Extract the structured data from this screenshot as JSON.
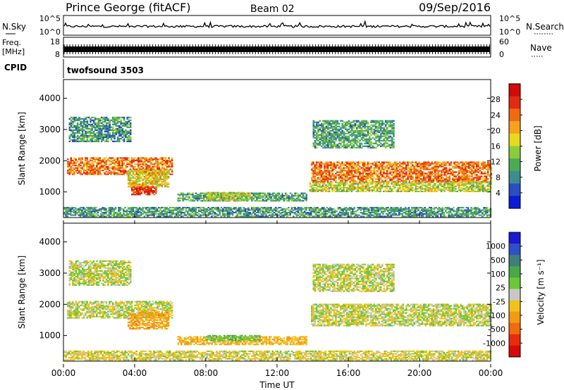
{
  "header": {
    "site": "Prince George (fitACF)",
    "beam": "Beam 02",
    "date": "09/Sep/2016"
  },
  "top_panels": {
    "nsky_label": "N.Sky",
    "nsky_ticks": [
      "10^5",
      "10^0"
    ],
    "nsearch_label": "N.Search",
    "nsearch_ticks": [
      "10^5",
      "10^0"
    ],
    "freq_label": "Freq.",
    "freq_unit": "[MHz]",
    "freq_ticks": [
      "18",
      "8"
    ],
    "nave_label": "Nave",
    "nave_ticks": [
      "60",
      "0"
    ],
    "cpid_label": "CPID",
    "cpid_value": "twofsound 3503"
  },
  "chart_data": {
    "type": "heatmap",
    "x_range_hours": [
      0,
      24
    ],
    "x_ticks": [
      "00:00",
      "04:00",
      "08:00",
      "12:00",
      "16:00",
      "20:00",
      "00:00"
    ],
    "xlabel": "Time UT",
    "y_range_km": [
      180,
      4600
    ],
    "y_ticks": [
      1000,
      2000,
      3000,
      4000
    ],
    "ylabel": "Slant Range [km]",
    "panels": [
      {
        "name": "power",
        "colorbar_label": "Power [dB]",
        "colorbar_ticks": [
          "4",
          "8",
          "12",
          "16",
          "20",
          "24",
          "28"
        ],
        "colorscale": [
          "#0a1cd8",
          "#2a4ebd",
          "#3d8d8f",
          "#4caa57",
          "#8ccc3a",
          "#e8d81e",
          "#f5a21c",
          "#f06a14",
          "#e02c10",
          "#d20a0a"
        ],
        "range_db": [
          0,
          30
        ],
        "regions": [
          {
            "t0": 0.2,
            "t1": 6.1,
            "r0": 1550,
            "r1": 2100,
            "val": 22
          },
          {
            "t0": 3.6,
            "t1": 5.9,
            "r0": 1150,
            "r1": 1700,
            "val": 17
          },
          {
            "t0": 3.8,
            "t1": 5.2,
            "r0": 900,
            "r1": 1150,
            "val": 26
          },
          {
            "t0": 0.3,
            "t1": 3.8,
            "r0": 2600,
            "r1": 3400,
            "val": 9
          },
          {
            "t0": 6.4,
            "t1": 13.6,
            "r0": 700,
            "r1": 950,
            "val": 10
          },
          {
            "t0": 8.0,
            "t1": 10.5,
            "r0": 720,
            "r1": 1000,
            "val": 15
          },
          {
            "t0": 13.9,
            "t1": 24.0,
            "r0": 1300,
            "r1": 1950,
            "val": 22
          },
          {
            "t0": 13.8,
            "t1": 24.0,
            "r0": 1000,
            "r1": 1300,
            "val": 15
          },
          {
            "t0": 14.0,
            "t1": 18.5,
            "r0": 2400,
            "r1": 3300,
            "val": 10
          },
          {
            "t0": 0.0,
            "t1": 24.0,
            "r0": 200,
            "r1": 500,
            "val": 9
          }
        ]
      },
      {
        "name": "velocity",
        "colorbar_label": "Velocity [m s⁻¹]",
        "colorbar_ticks": [
          "1000",
          "500",
          "100",
          "25",
          "-25",
          "-100",
          "-500",
          "-1000"
        ],
        "colorscale": [
          "#1a1ad0",
          "#3050c8",
          "#3e7f7a",
          "#49a849",
          "#6cc83a",
          "#c8c8c8",
          "#f2c21a",
          "#f39a14",
          "#f06a10",
          "#e82c0c",
          "#d60a0a"
        ],
        "range_ms": [
          -1000,
          1000
        ],
        "regions": [
          {
            "t0": 0.2,
            "t1": 6.1,
            "r0": 1550,
            "r1": 2100,
            "val": 0
          },
          {
            "t0": 3.6,
            "t1": 5.9,
            "r0": 1200,
            "r1": 1750,
            "val": -300
          },
          {
            "t0": 0.3,
            "t1": 3.8,
            "r0": 2600,
            "r1": 3400,
            "val": 0
          },
          {
            "t0": 6.4,
            "t1": 13.6,
            "r0": 700,
            "r1": 950,
            "val": -200
          },
          {
            "t0": 8.0,
            "t1": 11.0,
            "r0": 820,
            "r1": 1000,
            "val": 150
          },
          {
            "t0": 13.9,
            "t1": 24.0,
            "r0": 1300,
            "r1": 2000,
            "val": 0
          },
          {
            "t0": 14.0,
            "t1": 18.5,
            "r0": 2400,
            "r1": 3300,
            "val": 0
          },
          {
            "t0": 0.0,
            "t1": 24.0,
            "r0": 200,
            "r1": 500,
            "val": -50
          }
        ]
      }
    ]
  }
}
